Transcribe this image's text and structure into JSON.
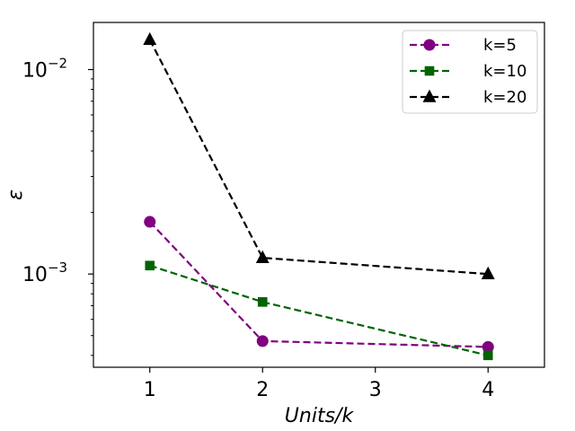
{
  "chart_data": {
    "type": "line",
    "title": "",
    "xlabel": "Units/k",
    "ylabel": "ε",
    "x_categories": [
      "1",
      "2",
      "4"
    ],
    "x_tick_labels": [
      "1",
      "2",
      "3",
      "4"
    ],
    "x_positions": [
      1,
      2,
      4
    ],
    "xlim": [
      0.5,
      4.5
    ],
    "y_scale": "log",
    "ylim": [
      0.00035,
      0.017
    ],
    "y_tick_labels": [
      {
        "value": 0.01,
        "base": "10",
        "exp": "−2"
      },
      {
        "value": 0.001,
        "base": "10",
        "exp": "−3"
      }
    ],
    "grid": false,
    "legend_position": "top-right",
    "series": [
      {
        "name": "k=5",
        "color": "#800080",
        "marker": "circle",
        "line_style": "dashed",
        "values": [
          0.0018,
          0.00047,
          0.00044
        ]
      },
      {
        "name": "k=10",
        "color": "#006400",
        "marker": "square",
        "line_style": "dashed",
        "values": [
          0.0011,
          0.00073,
          0.0004
        ]
      },
      {
        "name": "k=20",
        "color": "#000000",
        "marker": "triangle",
        "line_style": "dashed",
        "values": [
          0.014,
          0.0012,
          0.001
        ]
      }
    ]
  }
}
